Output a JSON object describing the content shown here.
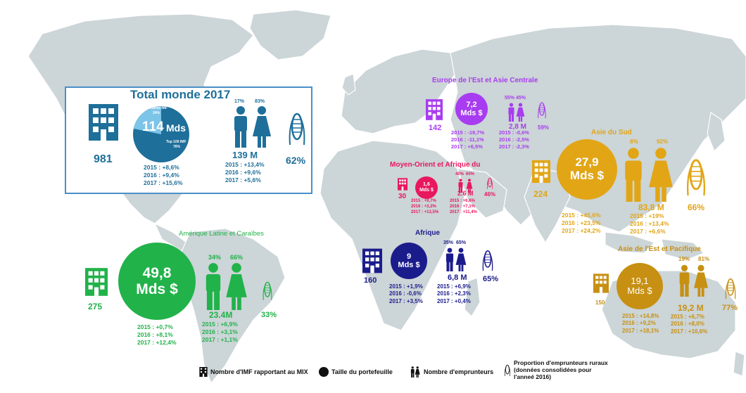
{
  "colors": {
    "map_land": "#ccd5d7",
    "map_water": "#ffffff",
    "world": "#1e6f9a",
    "world_light": "#7cc4e8",
    "eca": "#a83cf0",
    "mena": "#e8185f",
    "africa": "#1b1c8c",
    "south_asia": "#e2a515",
    "eap": "#c79012",
    "lac": "#21b24a"
  },
  "world": {
    "title": "Total monde 2017",
    "imf_count": "981",
    "portfolio_value": "114",
    "portfolio_unit": "Mds",
    "slice_small_label": "Autres IMF",
    "slice_small_pct": "24%",
    "slice_large_label": "Top 100 IMF",
    "slice_large_pct": "76%",
    "portfolio_growth": "2015 : +8,6%\n2016 : +9,4%\n2017 : +15,6%",
    "male_pct": "17%",
    "female_pct": "83%",
    "borrowers": "139 M",
    "borrowers_growth": "2015 : +13,4%\n2016 : +9,6%\n2017 : +5,6%",
    "rural_pct": "62%"
  },
  "eca": {
    "title": "Europe de l'Est et Asie Centrale",
    "imf_count": "142",
    "portfolio_value": "7,2",
    "portfolio_unit": "Mds $",
    "portfolio_growth": "2015 : -19,7%\n2016 : -11,1%\n2017 : +6,5%",
    "male_pct": "55%",
    "female_pct": "45%",
    "borrowers": "2,8 M",
    "borrowers_growth": "2015 : -0,6%\n2016 : -2,5%\n2017 : -2,3%",
    "rural_pct": "59%"
  },
  "mena": {
    "title": "Moyen-Orient et Afrique du",
    "imf_count": "30",
    "portfolio_value": "1,6",
    "portfolio_unit": "Mds $",
    "portfolio_growth": "2015 : +9,7%\n2016 : +3,2%\n2017 : +13,5%",
    "male_pct": "40%",
    "female_pct": "60%",
    "borrowers": "2.6 M",
    "borrowers_growth": "2015 : +6,6%\n2016 : +7,1%\n2017 : +11,4%",
    "rural_pct": "46%"
  },
  "africa": {
    "title": "Afrique",
    "imf_count": "160",
    "portfolio_value": "9",
    "portfolio_unit": "Mds $",
    "portfolio_growth": "2015 : +1,9%\n2016 : -0,6%\n2017 : +3,5%",
    "male_pct": "35%",
    "female_pct": "65%",
    "borrowers": "6,8 M",
    "borrowers_growth": "2015 : +6,9%\n2016 : +2,3%\n2017 : +0,4%",
    "rural_pct": "65%"
  },
  "south_asia": {
    "title": "Asie du Sud",
    "imf_count": "224",
    "portfolio_value": "27,9",
    "portfolio_unit": "Mds $",
    "portfolio_growth": "2015 : +45,6%\n2016 : +23,5%\n2017 : +24,2%",
    "male_pct": "8%",
    "female_pct": "92%",
    "borrowers": "83,8 M",
    "borrowers_growth": "2015 : +19%\n2016 : +13,4%\n2017 : +6,6%",
    "rural_pct": "66%"
  },
  "eap": {
    "title": "Asie de l'Est et Pacifique",
    "imf_count": "150",
    "portfolio_value": "19,1",
    "portfolio_unit": "Mds $",
    "portfolio_growth": "2015 : +14,8%\n2016 : +9,2%\n2017 : +18,1%",
    "male_pct": "19%",
    "female_pct": "81%",
    "borrowers": "19,2 M",
    "borrowers_growth": "2015 : +6,7%\n2016 : +8,0%\n2017 : +10,6%",
    "rural_pct": "77%"
  },
  "lac": {
    "title": "Amérique Latine et Caraïbes",
    "imf_count": "275",
    "portfolio_value": "49,8",
    "portfolio_unit": "Mds $",
    "portfolio_growth": "2015 : +0,7%\n2016 : +8,1%\n2017 : +12,4%",
    "male_pct": "34%",
    "female_pct": "66%",
    "borrowers": "23.4M",
    "borrowers_growth": "2015 : +6,9%\n2016 : +3,1%\n2017 : +1,1%",
    "rural_pct": "33%"
  },
  "legend": {
    "imf": "Nombre d'IMF rapportant au MIX",
    "portfolio": "Taille du portefeuille",
    "borrowers": "Nombre d'emprunteurs",
    "rural": "Proportion d'emprunteurs ruraux\n(données consolidées pour\nl'anneé 2016)"
  }
}
